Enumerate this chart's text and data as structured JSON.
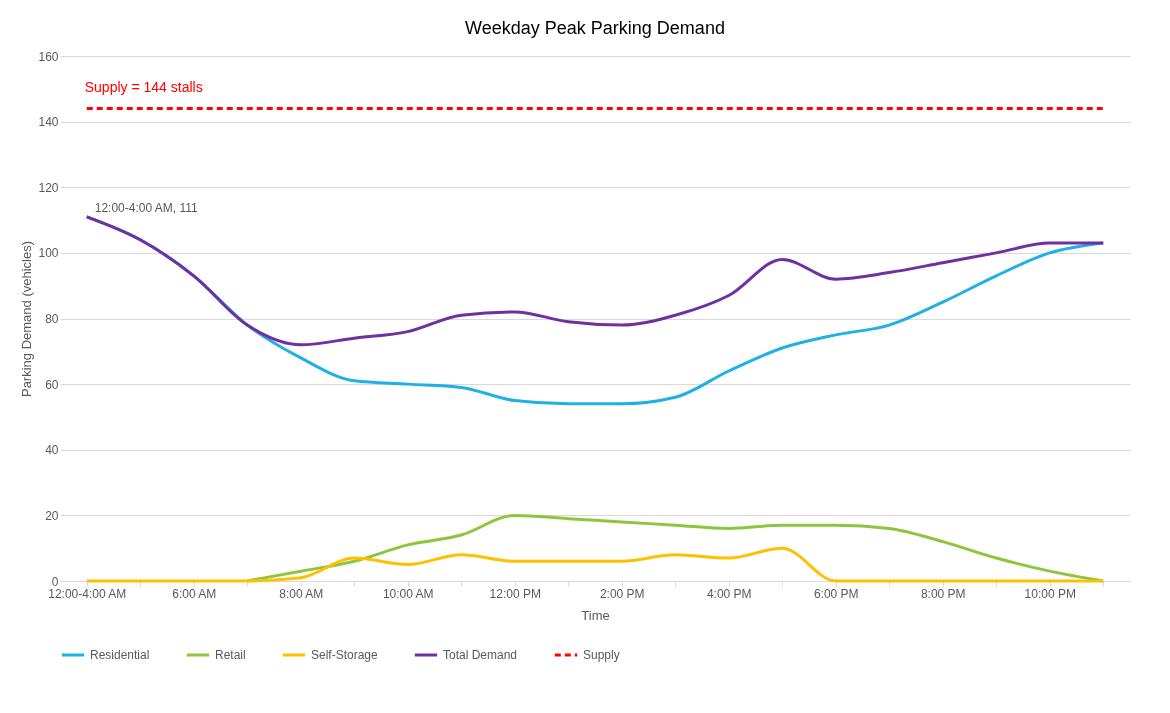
{
  "chart_data": {
    "type": "line",
    "title": "Weekday Peak Parking Demand",
    "xlabel": "Time",
    "ylabel": "Parking Demand (vehicles)",
    "categories": [
      "12:00-4:00 AM",
      null,
      "6:00 AM",
      null,
      "8:00 AM",
      null,
      "10:00 AM",
      null,
      "12:00 PM",
      null,
      "2:00 PM",
      null,
      "4:00 PM",
      null,
      "6:00 PM",
      null,
      "8:00 PM",
      null,
      "10:00 PM",
      null
    ],
    "series": [
      {
        "name": "Residential",
        "color": "#1fb1e6",
        "values": [
          111,
          104,
          93,
          78,
          68,
          61,
          60,
          59,
          55,
          54,
          54,
          56,
          64,
          71,
          75,
          78,
          85,
          93,
          100,
          103
        ]
      },
      {
        "name": "Retail",
        "color": "#8cc63f",
        "values": [
          null,
          null,
          null,
          0,
          3,
          6,
          11,
          14,
          20,
          19,
          18,
          17,
          16,
          17,
          17,
          16,
          12,
          7,
          3,
          0
        ]
      },
      {
        "name": "Self-Storage",
        "color": "#ffc000",
        "values": [
          0,
          0,
          0,
          0,
          1,
          7,
          5,
          8,
          6,
          6,
          6,
          8,
          7,
          10,
          0,
          0,
          0,
          0,
          0,
          0
        ]
      },
      {
        "name": "Total Demand",
        "color": "#7030a0",
        "values": [
          111,
          104,
          93,
          78,
          72,
          74,
          76,
          81,
          82,
          79,
          78,
          81,
          87,
          98,
          92,
          94,
          97,
          100,
          103,
          103
        ]
      },
      {
        "name": "Supply",
        "color": "#ff0000",
        "line_style": "dashed",
        "values": [
          144,
          144,
          144,
          144,
          144,
          144,
          144,
          144,
          144,
          144,
          144,
          144,
          144,
          144,
          144,
          144,
          144,
          144,
          144,
          144
        ]
      }
    ],
    "annotations": [
      {
        "text": "Supply = 144 stalls",
        "x": "12:00-4:00 AM",
        "y": 144
      },
      {
        "text": "12:00-4:00 AM, 111",
        "x": "12:00-4:00 AM",
        "y": 111
      }
    ],
    "ylim": [
      0,
      160
    ],
    "yticks": [
      0,
      20,
      40,
      60,
      80,
      100,
      120,
      140,
      160
    ],
    "grid": "y",
    "legend": "bottom"
  }
}
